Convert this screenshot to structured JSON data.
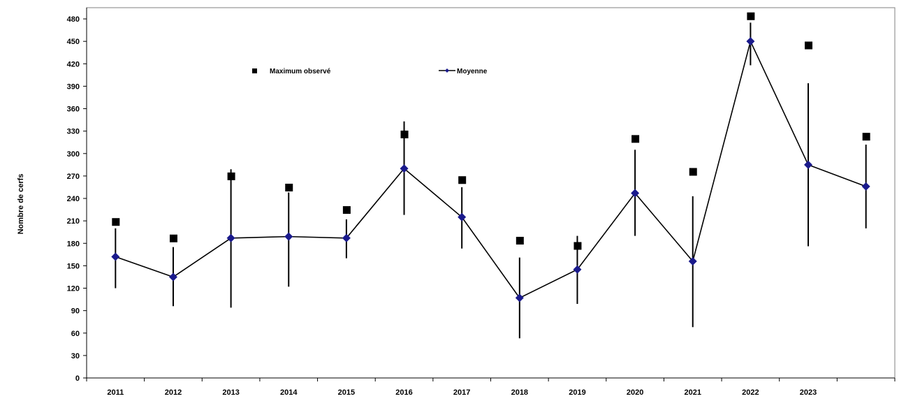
{
  "chart_data": {
    "type": "line",
    "ylabel": "Nombre de cerfs",
    "xlabel": "",
    "title": "",
    "categories": [
      "2011",
      "2012",
      "2013",
      "2014",
      "2015",
      "2016",
      "2017",
      "2018",
      "2019",
      "2020",
      "2021",
      "2022",
      "2023",
      ""
    ],
    "yticks": [
      0,
      30,
      60,
      90,
      120,
      150,
      180,
      210,
      240,
      270,
      300,
      330,
      360,
      390,
      420,
      450,
      480
    ],
    "ylim": [
      0,
      495
    ],
    "legend": {
      "placement": "top-center"
    },
    "grid": false,
    "series": [
      {
        "name": "Maximum observé",
        "style": "square-marker",
        "color": "#000000",
        "values": [
          209,
          187,
          270,
          255,
          225,
          326,
          265,
          184,
          177,
          320,
          276,
          484,
          445,
          323
        ]
      },
      {
        "name": "Moyenne",
        "style": "line-diamond",
        "color": "#000000",
        "marker_color": "#1a1a8c",
        "values": [
          162,
          135,
          187,
          189,
          187,
          280,
          215,
          107,
          145,
          247,
          156,
          450,
          285,
          256
        ],
        "error_low": [
          120,
          96,
          94,
          122,
          160,
          218,
          173,
          53,
          99,
          190,
          68,
          418,
          176,
          200
        ],
        "error_high": [
          200,
          175,
          279,
          248,
          212,
          343,
          255,
          161,
          190,
          305,
          243,
          475,
          394,
          312
        ]
      }
    ]
  }
}
